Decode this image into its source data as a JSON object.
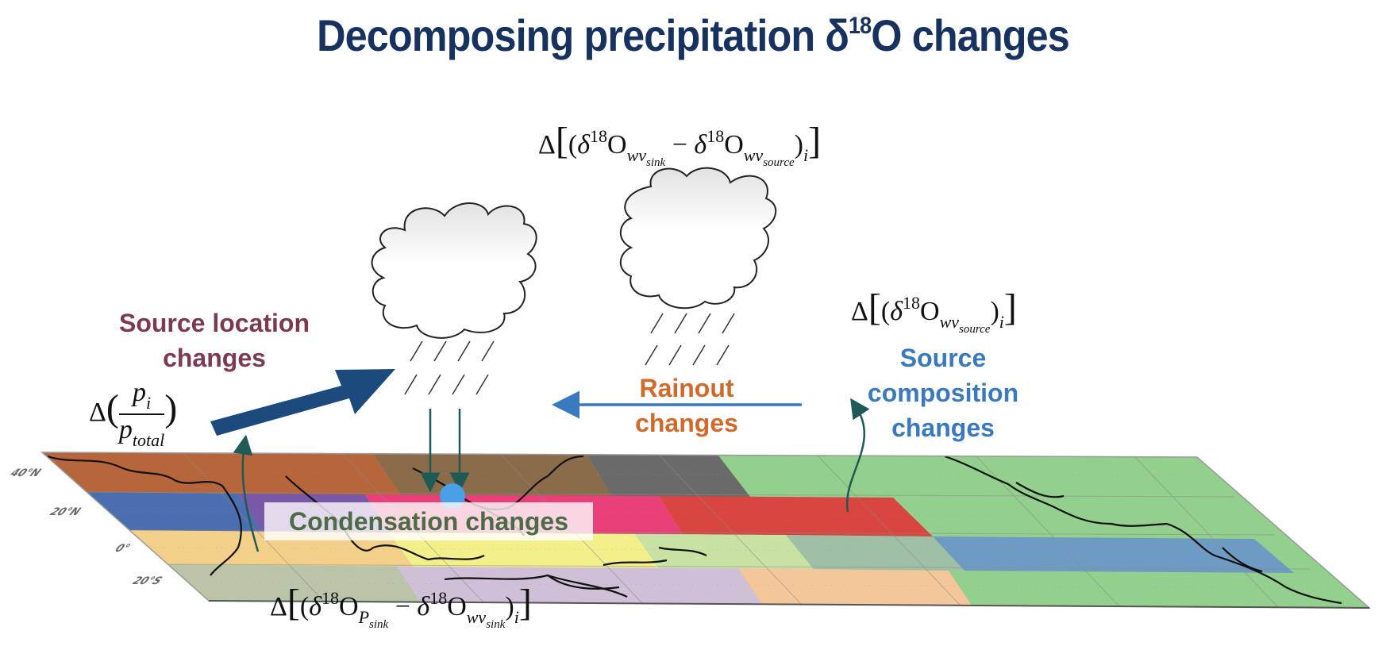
{
  "title": {
    "main": "Decomposing precipitation δ",
    "sup": "18",
    "tail": "O changes"
  },
  "labels": {
    "source_location": "Source location changes",
    "source_location_l1": "Source location",
    "source_location_l2": "changes",
    "rainout_l1": "Rainout",
    "rainout_l2": "changes",
    "source_comp_l1": "Source",
    "source_comp_l2": "composition",
    "source_comp_l3": "changes",
    "condensation": "Condensation changes"
  },
  "equations": {
    "delta": "Δ",
    "frac_num": "p",
    "frac_num_sub": "i",
    "frac_den": "p",
    "frac_den_sub": "total",
    "rainout_eq": "Δ[(δ18Owvsink − δ18Owvsource)i]",
    "source_comp_eq": "Δ[(δ18Owvsource)i]",
    "condensation_eq": "Δ[(δ18OPsink − δ18Owvsink)i]",
    "d": "δ",
    "eighteen": "18",
    "o": "O",
    "wv": "wv",
    "p_cap": "P",
    "sink": "sink",
    "source": "source",
    "i": "i",
    "minus": "−",
    "lbrack": "[",
    "rbrack": "]",
    "lparen": "(",
    "rparen": ")"
  },
  "map": {
    "lat_labels": [
      "40°N",
      "20°N",
      "0°",
      "20°S"
    ]
  },
  "colors": {
    "title": "#17325f",
    "source_location": "#7b3a4e",
    "rainout": "#d06a2c",
    "source_composition": "#3a79bd",
    "condensation": "#4d6b45",
    "arrow_dark": "#1d4a7d",
    "arrow_blue": "#3a79bd",
    "arrow_teal": "#1f5a57",
    "moisture_dot": "#4a9fe8"
  }
}
